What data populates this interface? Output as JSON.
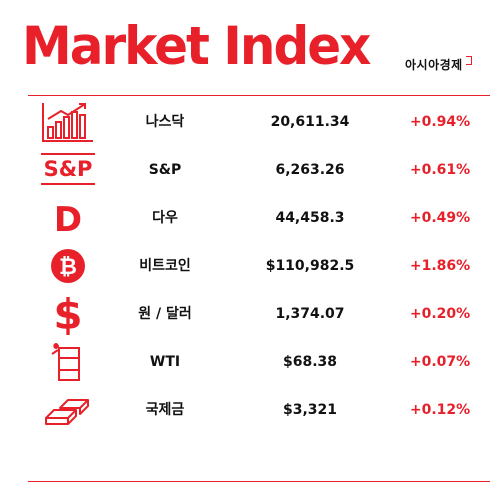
{
  "header": {
    "title": "Market Index",
    "brand": "아시아경제"
  },
  "colors": {
    "accent": "#e8202a",
    "text": "#111111"
  },
  "rows": [
    {
      "icon": "bar-chart-icon",
      "name": "나스닥",
      "value": "20,611.34",
      "change": "+0.94%"
    },
    {
      "icon": "sp-logo-icon",
      "name": "S&P",
      "value": "6,263.26",
      "change": "+0.61%",
      "icon_text": "S&P"
    },
    {
      "icon": "dow-letter-icon",
      "name": "다우",
      "value": "44,458.3",
      "change": "+0.49%",
      "icon_text": "D"
    },
    {
      "icon": "bitcoin-icon",
      "name": "비트코인",
      "value": "$110,982.5",
      "change": "+1.86%",
      "icon_text": "₿"
    },
    {
      "icon": "dollar-sign-icon",
      "name": "원 / 달러",
      "value": "1,374.07",
      "change": "+0.20%",
      "icon_text": "$"
    },
    {
      "icon": "oil-barrel-icon",
      "name": "WTI",
      "value": "$68.38",
      "change": "+0.07%"
    },
    {
      "icon": "gold-bars-icon",
      "name": "국제금",
      "value": "$3,321",
      "change": "+0.12%"
    }
  ]
}
